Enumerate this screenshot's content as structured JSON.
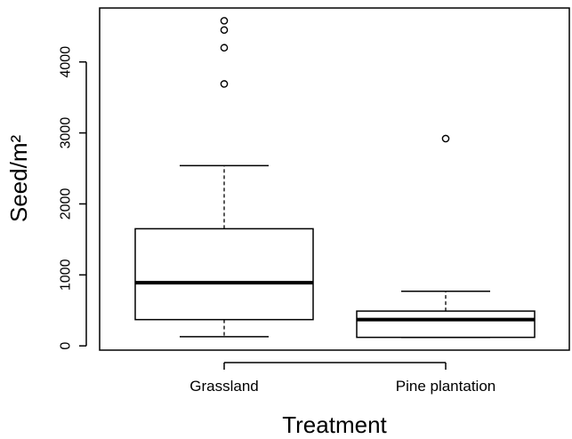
{
  "chart_data": {
    "type": "boxplot",
    "xlabel": "Treatment",
    "ylabel": "Seed/m²",
    "ylim": [
      -60,
      4760
    ],
    "yticks": [
      0,
      1000,
      2000,
      3000,
      4000
    ],
    "yticklabels": [
      "0",
      "1000",
      "2000",
      "3000",
      "4000"
    ],
    "grid": false,
    "groups": [
      {
        "label": "Grassland",
        "whisker_low": 130,
        "q1": 370,
        "median": 890,
        "q3": 1650,
        "whisker_high": 2540,
        "outliers": [
          3690,
          4200,
          4450,
          4580
        ]
      },
      {
        "label": "Pine plantation",
        "whisker_low": 120,
        "q1": 120,
        "median": 370,
        "q3": 490,
        "whisker_high": 770,
        "outliers": [
          2920
        ]
      }
    ]
  }
}
